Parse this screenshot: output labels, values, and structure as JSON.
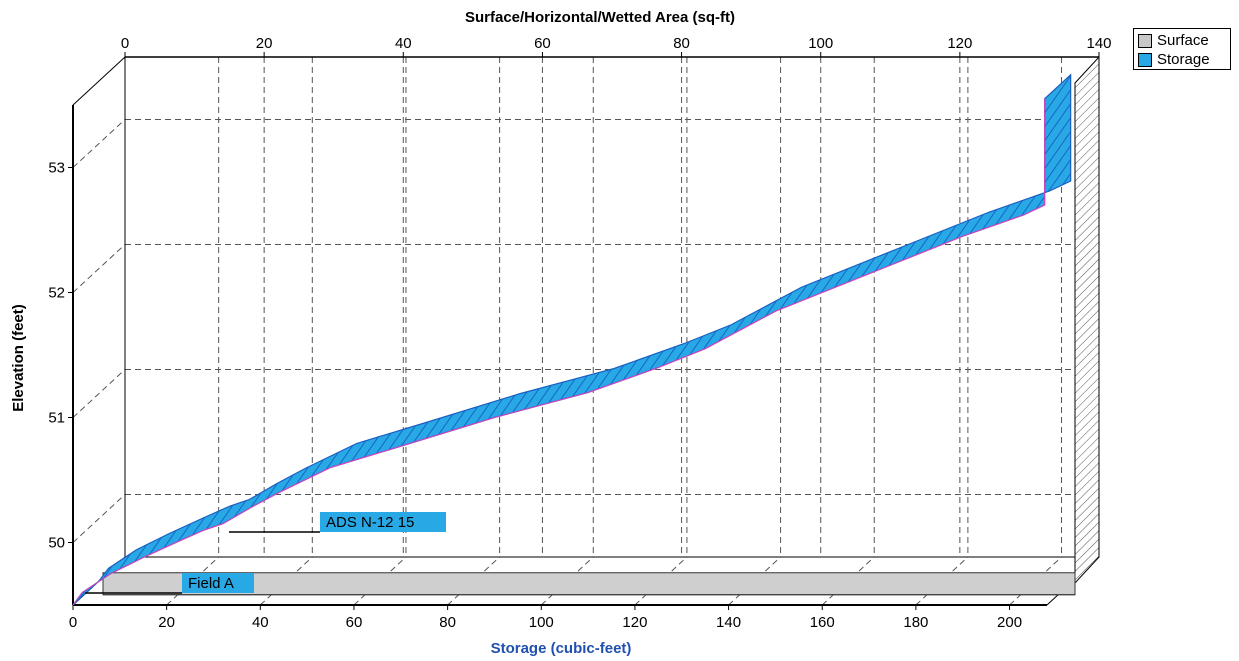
{
  "chart_data": {
    "type": "area",
    "top_axis": {
      "label": "Surface/Horizontal/Wetted Area (sq-ft)",
      "range": [
        0,
        140
      ],
      "ticks": [
        0,
        20,
        40,
        60,
        80,
        100,
        120,
        140
      ]
    },
    "x_axis": {
      "label": "Storage (cubic-feet)",
      "range": [
        0,
        208
      ],
      "ticks": [
        0,
        20,
        40,
        60,
        80,
        100,
        120,
        140,
        160,
        180,
        200
      ]
    },
    "y_axis": {
      "label": "Elevation  (feet)",
      "range": [
        49.5,
        53.5
      ],
      "ticks": [
        50,
        51,
        52,
        53
      ]
    },
    "grid": true,
    "legend_position": "top-right",
    "legend": [
      {
        "name": "Surface",
        "color": "#c8c8c8"
      },
      {
        "name": "Storage",
        "color": "#29a8e6"
      }
    ],
    "series": [
      {
        "name": "Storage",
        "color": "#29a8e6",
        "x": [
          0,
          2,
          8,
          15,
          22,
          28,
          32,
          38,
          44,
          55,
          70,
          90,
          110,
          125,
          135,
          150,
          170,
          190,
          203,
          207.5,
          207.5
        ],
        "y": [
          49.5,
          49.6,
          49.75,
          49.88,
          50.0,
          50.1,
          50.15,
          50.28,
          50.4,
          50.6,
          50.77,
          51.0,
          51.2,
          51.4,
          51.55,
          51.85,
          52.15,
          52.45,
          52.62,
          52.7,
          53.55
        ]
      },
      {
        "name": "Surface",
        "color": "#c8c8c8",
        "x": [
          0,
          208
        ],
        "y": [
          49.55,
          49.55
        ]
      }
    ],
    "annotations": [
      {
        "text": "ADS N-12  15",
        "x": 33,
        "y": 50.1
      },
      {
        "text": "Field A",
        "x": 3,
        "y": 49.6
      }
    ]
  }
}
